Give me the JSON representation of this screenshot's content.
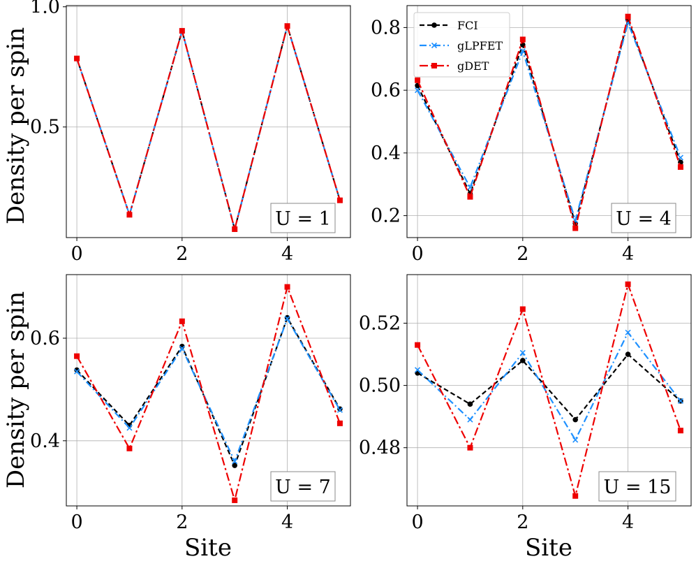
{
  "figure": {
    "ylabel": "Density per spin",
    "xlabel": "Site"
  },
  "legend": {
    "entries": [
      {
        "label": "FCI",
        "series": "FCI"
      },
      {
        "label": "gLPFET",
        "series": "gLPFET"
      },
      {
        "label": "gDET",
        "series": "gDET"
      }
    ]
  },
  "colors": {
    "FCI": "#000000",
    "gLPFET": "#1e90ff",
    "gDET": "#ee0000"
  },
  "chart_data": [
    {
      "type": "line",
      "label": "U = 1",
      "x": [
        0,
        1,
        2,
        3,
        4,
        5
      ],
      "xticks": [
        0,
        2,
        4
      ],
      "xlim": [
        -0.2,
        5.2
      ],
      "ylim": [
        0.04,
        1.005
      ],
      "yticks": [
        0.5,
        1.0
      ],
      "ytick_labels": [
        "0.5",
        "1.0"
      ],
      "ylabel": "Density per spin",
      "xlabel": "",
      "series": [
        {
          "name": "FCI",
          "values": [
            0.785,
            0.135,
            0.9,
            0.075,
            0.92,
            0.195
          ]
        },
        {
          "name": "gLPFET",
          "values": [
            0.785,
            0.135,
            0.9,
            0.075,
            0.92,
            0.195
          ]
        },
        {
          "name": "gDET",
          "values": [
            0.785,
            0.135,
            0.9,
            0.075,
            0.92,
            0.195
          ]
        }
      ]
    },
    {
      "type": "line",
      "label": "U = 4",
      "x": [
        0,
        1,
        2,
        3,
        4,
        5
      ],
      "xticks": [
        0,
        2,
        4
      ],
      "xlim": [
        -0.2,
        5.2
      ],
      "ylim": [
        0.13,
        0.87
      ],
      "yticks": [
        0.2,
        0.4,
        0.6,
        0.8
      ],
      "ytick_labels": [
        "0.2",
        "0.4",
        "0.6",
        "0.8"
      ],
      "ylabel": "",
      "xlabel": "",
      "legend": true,
      "series": [
        {
          "name": "FCI",
          "values": [
            0.615,
            0.27,
            0.745,
            0.175,
            0.825,
            0.37
          ]
        },
        {
          "name": "gLPFET",
          "values": [
            0.6,
            0.29,
            0.725,
            0.185,
            0.815,
            0.385
          ]
        },
        {
          "name": "gDET",
          "values": [
            0.632,
            0.26,
            0.762,
            0.16,
            0.835,
            0.355
          ]
        }
      ]
    },
    {
      "type": "line",
      "label": "U = 7",
      "x": [
        0,
        1,
        2,
        3,
        4,
        5
      ],
      "xticks": [
        0,
        2,
        4
      ],
      "xlim": [
        -0.2,
        5.2
      ],
      "ylim": [
        0.273,
        0.724
      ],
      "yticks": [
        0.4,
        0.6
      ],
      "ytick_labels": [
        "0.4",
        "0.6"
      ],
      "ylabel": "Density per spin",
      "xlabel": "Site",
      "series": [
        {
          "name": "FCI",
          "values": [
            0.538,
            0.43,
            0.584,
            0.352,
            0.64,
            0.462
          ]
        },
        {
          "name": "gLPFET",
          "values": [
            0.535,
            0.425,
            0.58,
            0.36,
            0.638,
            0.46
          ]
        },
        {
          "name": "gDET",
          "values": [
            0.565,
            0.385,
            0.633,
            0.284,
            0.7,
            0.434
          ]
        }
      ]
    },
    {
      "type": "line",
      "label": "U = 15",
      "x": [
        0,
        1,
        2,
        3,
        4,
        5
      ],
      "xticks": [
        0,
        2,
        4
      ],
      "xlim": [
        -0.2,
        5.2
      ],
      "ylim": [
        0.4613,
        0.5356
      ],
      "yticks": [
        0.48,
        0.5,
        0.52
      ],
      "ytick_labels": [
        "0.48",
        "0.50",
        "0.52"
      ],
      "ylabel": "",
      "xlabel": "Site",
      "series": [
        {
          "name": "FCI",
          "values": [
            0.504,
            0.494,
            0.508,
            0.489,
            0.51,
            0.495
          ]
        },
        {
          "name": "gLPFET",
          "values": [
            0.505,
            0.489,
            0.5105,
            0.4825,
            0.517,
            0.495
          ]
        },
        {
          "name": "gDET",
          "values": [
            0.513,
            0.48,
            0.5245,
            0.4645,
            0.5325,
            0.4855
          ]
        }
      ]
    }
  ]
}
